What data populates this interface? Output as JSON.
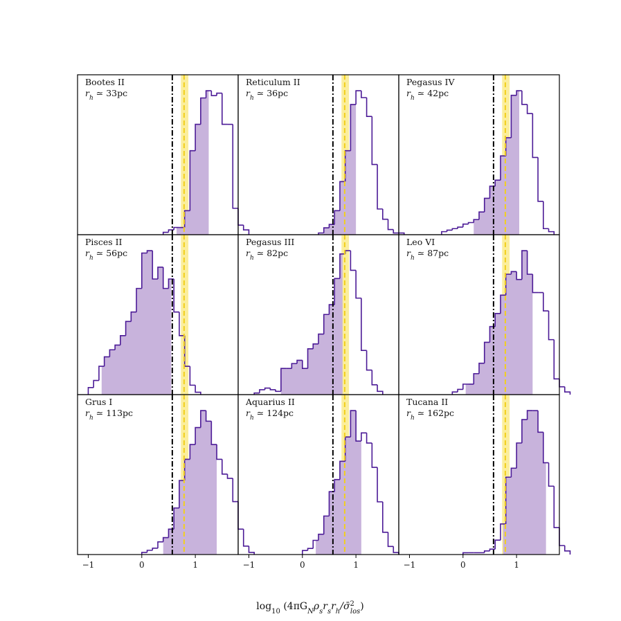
{
  "figure": {
    "xlabel": "log10(4πG_Nρ_sr_sr_h/σ̄²_los)",
    "xlabel_parts": {
      "pre": "log",
      "sub10": "10",
      "body": " (4πG",
      "subN": "N",
      "rho": "ρ",
      "subs1": "s",
      "r1": "r",
      "subs2": "s",
      "r2": "r",
      "subh": "h",
      "slash": "/σ̄",
      "sup2": "2",
      "subLos": "los",
      "close": ")"
    }
  },
  "chart_data": {
    "type": "bar",
    "layout": "3x3 grid of histogram panels, shared x-axis",
    "xlim": [
      -1.2,
      1.8
    ],
    "xticks": [
      -1,
      0,
      1
    ],
    "xtick_labels": [
      "−1",
      "0",
      "1"
    ],
    "yticks": "none",
    "grid": false,
    "bin_width": 0.1,
    "colors": {
      "outline": "#4b1a96",
      "fill": "#c8b3dc",
      "vline_black": "#000000",
      "vline_yellow": "#f2cf1d",
      "band_yellow": "#fbee9c"
    },
    "reference_lines": {
      "black_dashdot_x": 0.57,
      "yellow_dashed_x": 0.79,
      "yellow_band": [
        0.73,
        0.87
      ]
    },
    "panels": [
      {
        "name": "Bootes II",
        "rh_label": "r_h ≃ 33pc",
        "rh_text": "33pc",
        "x_start": 0.4,
        "counts": [
          1,
          2,
          3,
          3,
          10,
          35,
          46,
          57,
          60,
          58,
          59,
          46,
          46,
          11,
          4,
          2
        ],
        "shade_range": [
          0.65,
          1.25
        ]
      },
      {
        "name": "Reticulum II",
        "rh_label": "r_h ≃ 36pc",
        "rh_text": "36pc",
        "x_start": 0.3,
        "counts": [
          1,
          4,
          6,
          14,
          31,
          49,
          76,
          84,
          80,
          69,
          41,
          15,
          9,
          3,
          1,
          1
        ],
        "shade_range": [
          0.4,
          1.0
        ]
      },
      {
        "name": "Pegasus IV",
        "rh_label": "r_h ≃ 42pc",
        "rh_text": "42pc",
        "x_start": -0.4,
        "counts": [
          2,
          3,
          4,
          5,
          7,
          8,
          10,
          15,
          24,
          32,
          36,
          52,
          64,
          92,
          95,
          86,
          80,
          51,
          22,
          4,
          2
        ],
        "shade_range": [
          0.2,
          1.05
        ]
      },
      {
        "name": "Pisces II",
        "rh_label": "r_h ≃ 56pc",
        "rh_text": "56pc",
        "x_start": -1.0,
        "counts": [
          3,
          6,
          12,
          16,
          19,
          21,
          25,
          31,
          35,
          45,
          60,
          61,
          49,
          54,
          45,
          49,
          35,
          25,
          12,
          4,
          1
        ],
        "shade_range": [
          -0.75,
          0.55
        ]
      },
      {
        "name": "Pegasus III",
        "rh_label": "r_h ≃ 82pc",
        "rh_text": "82pc",
        "x_start": -0.9,
        "counts": [
          1,
          3,
          4,
          3,
          2,
          16,
          16,
          19,
          21,
          16,
          28,
          31,
          37,
          49,
          55,
          71,
          86,
          88,
          76,
          59,
          27,
          15,
          6,
          2
        ],
        "shade_range": [
          -0.4,
          0.75
        ]
      },
      {
        "name": "Leo VI",
        "rh_label": "r_h ≃ 87pc",
        "rh_text": "87pc",
        "x_start": -0.2,
        "counts": [
          1,
          2,
          4,
          4,
          8,
          12,
          20,
          26,
          31,
          38,
          46,
          47,
          44,
          55,
          46,
          39,
          39,
          32,
          21,
          6,
          3,
          1
        ],
        "shade_range": [
          0.05,
          1.3
        ]
      },
      {
        "name": "Grus I",
        "rh_label": "r_h ≃ 113pc",
        "rh_text": "113pc",
        "x_start": 0.0,
        "counts": [
          1,
          2,
          3,
          6,
          8,
          12,
          22,
          35,
          45,
          52,
          60,
          68,
          63,
          52,
          45,
          38,
          36,
          25,
          12,
          4,
          1
        ],
        "shade_range": [
          0.4,
          1.4
        ]
      },
      {
        "name": "Aquarius II",
        "rh_label": "r_h ≃ 124pc",
        "rh_text": "124pc",
        "x_start": 0.0,
        "counts": [
          2,
          3,
          7,
          10,
          19,
          31,
          37,
          46,
          58,
          71,
          56,
          60,
          55,
          43,
          26,
          11,
          4,
          1
        ],
        "shade_range": [
          0.25,
          1.1
        ]
      },
      {
        "name": "Tucana II",
        "rh_label": "r_h ≃ 162pc",
        "rh_text": "162pc",
        "x_start": 0.0,
        "counts": [
          1,
          1,
          1,
          1,
          2,
          3,
          8,
          17,
          43,
          48,
          62,
          75,
          80,
          80,
          68,
          51,
          38,
          15,
          5,
          2
        ],
        "shade_range": [
          0.75,
          1.55
        ]
      }
    ]
  }
}
